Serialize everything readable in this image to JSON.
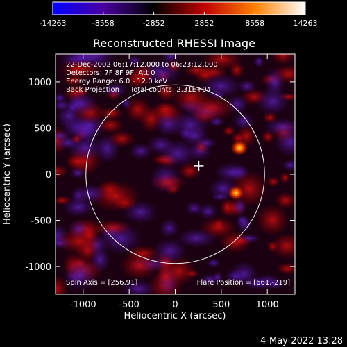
{
  "colorbar": {
    "tick_labels": [
      "-14263",
      "-8558",
      "-2852",
      "2852",
      "8558",
      "14263"
    ],
    "range": [
      -14263,
      14263
    ],
    "stops": [
      "#0000ff",
      "#4a00a0",
      "#000000",
      "#c00000",
      "#ff8000",
      "#ffffff"
    ]
  },
  "plot": {
    "title": "Reconstructed RHESSI Image",
    "xlabel": "Heliocentric X (arcsec)",
    "ylabel": "Heliocentric Y (arcsec)",
    "xlim": [
      -1300,
      1300
    ],
    "ylim": [
      -1300,
      1300
    ],
    "x_ticks": [
      "-1000",
      "-500",
      "0",
      "500",
      "1000"
    ],
    "y_ticks": [
      "-1000",
      "-500",
      "0",
      "500",
      "1000"
    ],
    "solar_limb_radius_arcsec": 970,
    "map_center": [
      256,
      91
    ]
  },
  "annotations": {
    "time_range": "22-Dec-2002 06:17:12.000 to 06:23:12.000",
    "detectors": "Detectors: 7F 8F 9F, Att 0",
    "energy_range": "Energy Range: 6.0 - 12.0 keV",
    "method_and_counts": "Back Projection     Total counts: 2.31E+04",
    "spin_axis": "Spin Axis = [256,91]",
    "flare_position": "Flare Position = [661,-219]"
  },
  "timestamp": "4-May-2022 13:28"
}
